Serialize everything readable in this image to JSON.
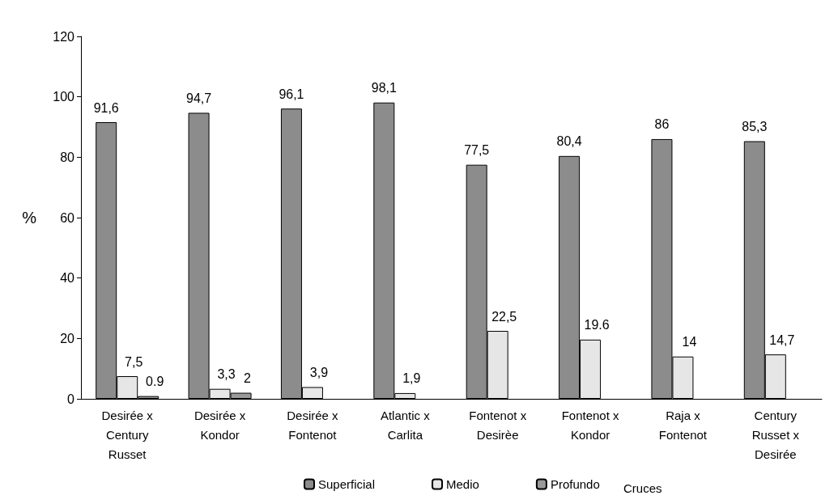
{
  "chart_data": {
    "type": "bar",
    "ylabel": "%",
    "xlabel": "Cruces",
    "categories": [
      "Desirée x\nCentury\nRusset",
      "Desirée x\nKondor",
      "Desirée x\nFontenot",
      "Atlantic x\nCarlita",
      "Fontenot x\nDesirèe",
      "Fontenot x\nKondor",
      "Raja x\nFontenot",
      "Century\nRusset x\nDesirée"
    ],
    "series": [
      {
        "name": "Superficial",
        "color": "#8c8c8c",
        "values": [
          91.6,
          94.7,
          96.1,
          98.1,
          77.5,
          80.4,
          86,
          85.3
        ],
        "value_labels": [
          "91,6",
          "94,7",
          "96,1",
          "98,1",
          "77,5",
          "80,4",
          "86",
          "85,3"
        ]
      },
      {
        "name": "Medio",
        "color": "#e6e6e6",
        "values": [
          7.5,
          3.3,
          3.9,
          1.9,
          22.5,
          19.6,
          14,
          14.7
        ],
        "value_labels": [
          "7,5",
          "3,3",
          "3,9",
          "1,9",
          "22,5",
          "19.6",
          "14",
          "14,7"
        ]
      },
      {
        "name": "Profundo",
        "color": "#9a9a9a",
        "values": [
          0.9,
          2,
          null,
          null,
          null,
          null,
          null,
          null
        ],
        "value_labels": [
          "0.9",
          "2",
          null,
          null,
          null,
          null,
          null,
          null
        ]
      }
    ],
    "ylim": [
      0,
      120
    ],
    "yticks": [
      0,
      20,
      40,
      60,
      80,
      100,
      120
    ],
    "grid": false,
    "legend": "bottom"
  }
}
